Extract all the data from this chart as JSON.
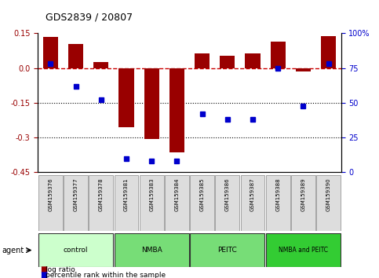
{
  "title": "GDS2839 / 20807",
  "samples": [
    "GSM159376",
    "GSM159377",
    "GSM159378",
    "GSM159381",
    "GSM159383",
    "GSM159384",
    "GSM159385",
    "GSM159386",
    "GSM159387",
    "GSM159388",
    "GSM159389",
    "GSM159390"
  ],
  "log_ratio": [
    0.133,
    0.105,
    0.025,
    -0.255,
    -0.305,
    -0.365,
    0.065,
    0.055,
    0.065,
    0.115,
    -0.015,
    0.138
  ],
  "percentile_rank": [
    78,
    62,
    52,
    10,
    8,
    8,
    42,
    38,
    38,
    75,
    48,
    78
  ],
  "bar_color": "#990000",
  "dot_color": "#0000cc",
  "dashed_line_color": "#cc0000",
  "dotted_line_color": "#000000",
  "ylim_left": [
    -0.45,
    0.15
  ],
  "ylim_right": [
    0,
    100
  ],
  "yticks_left": [
    0.15,
    0.0,
    -0.15,
    -0.3,
    -0.45
  ],
  "yticks_right": [
    100,
    75,
    50,
    25,
    0
  ],
  "group_fill_colors": [
    "#ccffcc",
    "#77dd77",
    "#77dd77",
    "#33cc33"
  ],
  "groups": [
    {
      "label": "control",
      "start": 0,
      "end": 3
    },
    {
      "label": "NMBA",
      "start": 3,
      "end": 6
    },
    {
      "label": "PEITC",
      "start": 6,
      "end": 9
    },
    {
      "label": "NMBA and PEITC",
      "start": 9,
      "end": 12
    }
  ],
  "legend_log_ratio": "log ratio",
  "legend_percentile": "percentile rank within the sample",
  "agent_label": "agent",
  "bar_width": 0.6
}
